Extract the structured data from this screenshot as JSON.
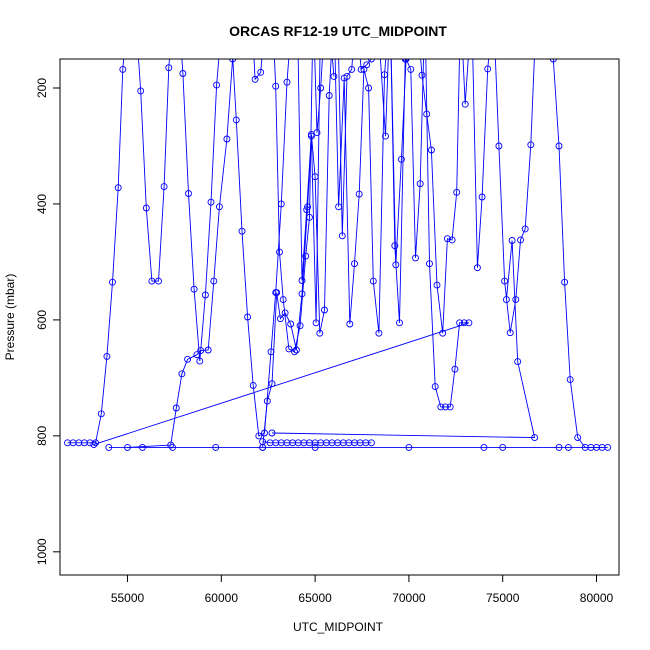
{
  "chart_data": {
    "type": "line",
    "title": "ORCAS RF12-19 UTC_MIDPOINT",
    "xlabel": "UTC_MIDPOINT",
    "ylabel": "Pressure (mbar)",
    "xlim": [
      51400,
      81200
    ],
    "ylim": [
      1040,
      150
    ],
    "y_inverted": true,
    "xticks": [
      55000,
      60000,
      65000,
      70000,
      75000,
      80000
    ],
    "yticks": [
      200,
      400,
      600,
      800,
      1000
    ],
    "grid": false,
    "legend": "none",
    "series": [
      {
        "color": "#0000ff",
        "points": [
          [
            51800,
            812
          ],
          [
            52100,
            812
          ],
          [
            52400,
            812
          ],
          [
            52700,
            812
          ],
          [
            53000,
            812
          ],
          [
            53300,
            812
          ],
          [
            53600,
            762
          ],
          [
            53900,
            663
          ],
          [
            54200,
            535
          ],
          [
            54500,
            372
          ],
          [
            54750,
            168
          ],
          [
            55000,
            60
          ],
          [
            55400,
            60
          ],
          [
            55700,
            205
          ],
          [
            56000,
            407
          ],
          [
            56300,
            533
          ],
          [
            56650,
            533
          ],
          [
            56950,
            370
          ],
          [
            57200,
            165
          ],
          [
            57450,
            60
          ],
          [
            57700,
            60
          ],
          [
            57950,
            175
          ],
          [
            58250,
            382
          ],
          [
            58550,
            547
          ],
          [
            58850,
            671
          ],
          [
            59150,
            557
          ],
          [
            59450,
            397
          ],
          [
            59750,
            195
          ],
          [
            60100,
            60
          ],
          [
            60450,
            60
          ],
          [
            60800,
            255
          ],
          [
            61100,
            447
          ],
          [
            61400,
            595
          ],
          [
            61700,
            713
          ],
          [
            62000,
            800
          ],
          [
            62300,
            795
          ],
          [
            62650,
            655
          ],
          [
            62900,
            553
          ],
          [
            63200,
            400
          ],
          [
            63500,
            190
          ],
          [
            63800,
            60
          ],
          [
            64050,
            60
          ],
          [
            64300,
            532
          ],
          [
            64550,
            410
          ],
          [
            64800,
            280
          ],
          [
            65000,
            353
          ],
          [
            65250,
            623
          ],
          [
            65500,
            583
          ],
          [
            65750,
            213
          ],
          [
            66000,
            60
          ],
          [
            66250,
            405
          ],
          [
            66550,
            183
          ],
          [
            66850,
            607
          ],
          [
            67100,
            503
          ],
          [
            67350,
            383
          ],
          [
            67600,
            168
          ],
          [
            67850,
            200
          ],
          [
            68100,
            533
          ],
          [
            68400,
            623
          ],
          [
            68700,
            177
          ],
          [
            69000,
            60
          ],
          [
            69300,
            505
          ],
          [
            69600,
            323
          ],
          [
            69850,
            150
          ],
          [
            70100,
            168
          ],
          [
            70350,
            493
          ],
          [
            70600,
            365
          ],
          [
            70850,
            60
          ],
          [
            71100,
            503
          ],
          [
            71400,
            715
          ],
          [
            71700,
            750
          ],
          [
            71950,
            750
          ],
          [
            72200,
            750
          ],
          [
            72450,
            685
          ],
          [
            72700,
            605
          ],
          [
            72950,
            605
          ],
          [
            73200,
            605
          ],
          [
            53200,
            815
          ]
        ]
      },
      {
        "color": "#0000ff",
        "points": [
          [
            54000,
            820
          ],
          [
            55800,
            820
          ],
          [
            57400,
            820
          ],
          [
            59700,
            820
          ],
          [
            62200,
            820
          ],
          [
            65000,
            820
          ],
          [
            70000,
            820
          ],
          [
            75000,
            820
          ],
          [
            78500,
            820
          ],
          [
            80600,
            820
          ],
          [
            78000,
            820
          ],
          [
            74000,
            820
          ]
        ]
      },
      {
        "color": "#0000ff",
        "points": [
          [
            55000,
            820
          ],
          [
            57300,
            816
          ],
          [
            57600,
            752
          ],
          [
            57900,
            693
          ],
          [
            58200,
            668
          ],
          [
            58700,
            660
          ],
          [
            58900,
            653
          ],
          [
            59300,
            652
          ],
          [
            59600,
            533
          ],
          [
            59900,
            405
          ],
          [
            60300,
            288
          ],
          [
            60600,
            150
          ],
          [
            61000,
            60
          ],
          [
            61600,
            60
          ],
          [
            61800,
            185
          ],
          [
            62100,
            173
          ],
          [
            62400,
            60
          ],
          [
            62700,
            60
          ],
          [
            62900,
            197
          ],
          [
            63100,
            483
          ],
          [
            63300,
            565
          ],
          [
            63600,
            650
          ],
          [
            63900,
            655
          ],
          [
            64200,
            610
          ],
          [
            64500,
            490
          ],
          [
            64700,
            423
          ],
          [
            64900,
            60
          ],
          [
            65100,
            277
          ],
          [
            65300,
            200
          ],
          [
            65550,
            60
          ],
          [
            66200,
            60
          ],
          [
            66450,
            455
          ],
          [
            66700,
            180
          ],
          [
            66950,
            168
          ],
          [
            67200,
            60
          ],
          [
            67450,
            168
          ],
          [
            67750,
            160
          ],
          [
            68000,
            150
          ],
          [
            68300,
            60
          ],
          [
            68750,
            283
          ],
          [
            69000,
            60
          ],
          [
            69250,
            472
          ],
          [
            69500,
            605
          ],
          [
            69800,
            150
          ],
          [
            70050,
            60
          ],
          [
            70400,
            60
          ],
          [
            70700,
            178
          ],
          [
            70950,
            245
          ],
          [
            71200,
            307
          ],
          [
            71500,
            540
          ],
          [
            71800,
            623
          ],
          [
            72050,
            460
          ],
          [
            72300,
            462
          ],
          [
            72550,
            380
          ],
          [
            72750,
            60
          ],
          [
            73000,
            228
          ],
          [
            73350,
            60
          ],
          [
            73650,
            510
          ],
          [
            73900,
            388
          ],
          [
            74200,
            167
          ],
          [
            74500,
            60
          ],
          [
            74800,
            300
          ],
          [
            75100,
            533
          ],
          [
            75400,
            622
          ],
          [
            75700,
            565
          ],
          [
            75950,
            462
          ],
          [
            76200,
            443
          ],
          [
            76500,
            298
          ],
          [
            76800,
            60
          ],
          [
            77300,
            60
          ],
          [
            77700,
            150
          ],
          [
            78000,
            300
          ],
          [
            78300,
            535
          ],
          [
            78600,
            703
          ],
          [
            79000,
            803
          ],
          [
            79400,
            820
          ],
          [
            79700,
            820
          ],
          [
            80000,
            820
          ],
          [
            80300,
            820
          ]
        ]
      },
      {
        "color": "#0000ff",
        "points": [
          [
            62200,
            810
          ],
          [
            62600,
            812
          ],
          [
            62900,
            812
          ],
          [
            63200,
            812
          ],
          [
            63500,
            812
          ],
          [
            63800,
            812
          ],
          [
            64100,
            812
          ],
          [
            64400,
            812
          ],
          [
            64700,
            812
          ],
          [
            65000,
            812
          ],
          [
            65300,
            812
          ],
          [
            65600,
            812
          ],
          [
            65900,
            812
          ],
          [
            66200,
            812
          ],
          [
            66500,
            812
          ],
          [
            66800,
            812
          ],
          [
            67100,
            812
          ],
          [
            67400,
            812
          ],
          [
            67700,
            812
          ],
          [
            68000,
            812
          ]
        ]
      },
      {
        "color": "#0000ff",
        "points": [
          [
            62700,
            795
          ],
          [
            76700,
            803
          ],
          [
            75800,
            672
          ],
          [
            75500,
            463
          ],
          [
            75200,
            565
          ]
        ]
      },
      {
        "color": "#0000ff",
        "points": [
          [
            62200,
            820
          ],
          [
            62450,
            740
          ],
          [
            62700,
            710
          ],
          [
            62950,
            553
          ],
          [
            63150,
            598
          ],
          [
            63400,
            588
          ],
          [
            63700,
            607
          ],
          [
            64000,
            652
          ],
          [
            64300,
            555
          ],
          [
            64600,
            405
          ],
          [
            64800,
            283
          ],
          [
            65050,
            605
          ],
          [
            65300,
            60
          ],
          [
            65700,
            60
          ],
          [
            66000,
            180
          ]
        ]
      }
    ]
  }
}
